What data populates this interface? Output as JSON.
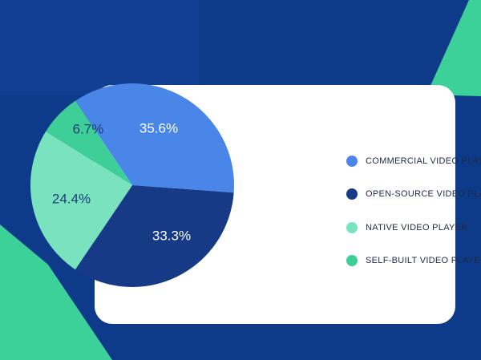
{
  "colors": {
    "background": "#0e3a8a",
    "background_panel": "#123f91",
    "accent_green": "#3dd19a",
    "card": "#ffffff",
    "label_light": "#ffffff",
    "label_dark": "#1f3b73"
  },
  "chart_data": {
    "type": "pie",
    "title": "",
    "slices": [
      {
        "label": "COMMERCIAL VIDEO PLAYER",
        "value": 35.6,
        "display": "35.6%",
        "color": "#4a86e8"
      },
      {
        "label": "OPEN-SOURCE VIDEO PLAYER",
        "value": 33.3,
        "display": "33.3%",
        "color": "#173a86"
      },
      {
        "label": "NATIVE VIDEO PLAYER",
        "value": 24.4,
        "display": "24.4%",
        "color": "#79e3c0"
      },
      {
        "label": "SELF-BUILT VIDEO PLAYER",
        "value": 6.7,
        "display": "6.7%",
        "color": "#3ecf98"
      }
    ],
    "legend_position": "right"
  }
}
